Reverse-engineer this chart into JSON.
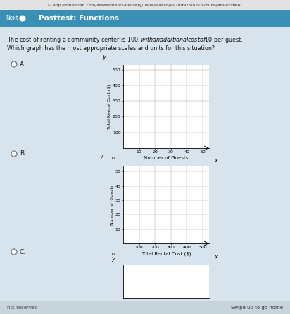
{
  "title": "Posttest: Functions",
  "question_line1": "The cost of renting a community center is $100, with an additional cost of $10 per guest.",
  "question_line2": "Which graph has the most appropriate scales and units for this situation?",
  "bg_color": "#d4dfe8",
  "header_bg": "#3a8fb5",
  "header_text_color": "#ffffff",
  "url_bar_color": "#e0e0e0",
  "content_bg": "#d8e4ed",
  "footer_bg": "#c8d4dc",
  "graph_A": {
    "label": "A.",
    "xlabel": "Number of Guests",
    "ylabel": "Total Rental Cost ($)",
    "xticks": [
      10,
      20,
      30,
      40,
      50
    ],
    "yticks": [
      100,
      200,
      300,
      400,
      500
    ],
    "xlim": [
      0,
      54
    ],
    "ylim": [
      0,
      530
    ]
  },
  "graph_B": {
    "label": "B.",
    "xlabel": "Total Rental Cost ($)",
    "ylabel": "Number of Guests",
    "xticks": [
      100,
      200,
      300,
      400,
      500
    ],
    "yticks": [
      10,
      20,
      30,
      40,
      50
    ],
    "xlim": [
      0,
      540
    ],
    "ylim": [
      0,
      54
    ]
  },
  "graph_C_label": "C.",
  "footer_text": "nts reserved",
  "swipe_text": "Swipe up to go home",
  "url_text": "12.app.edmentum.com/assessments-delivery/ua/la/launch/49109975/821526066/aHR0cHM6L",
  "next_text": "Next"
}
